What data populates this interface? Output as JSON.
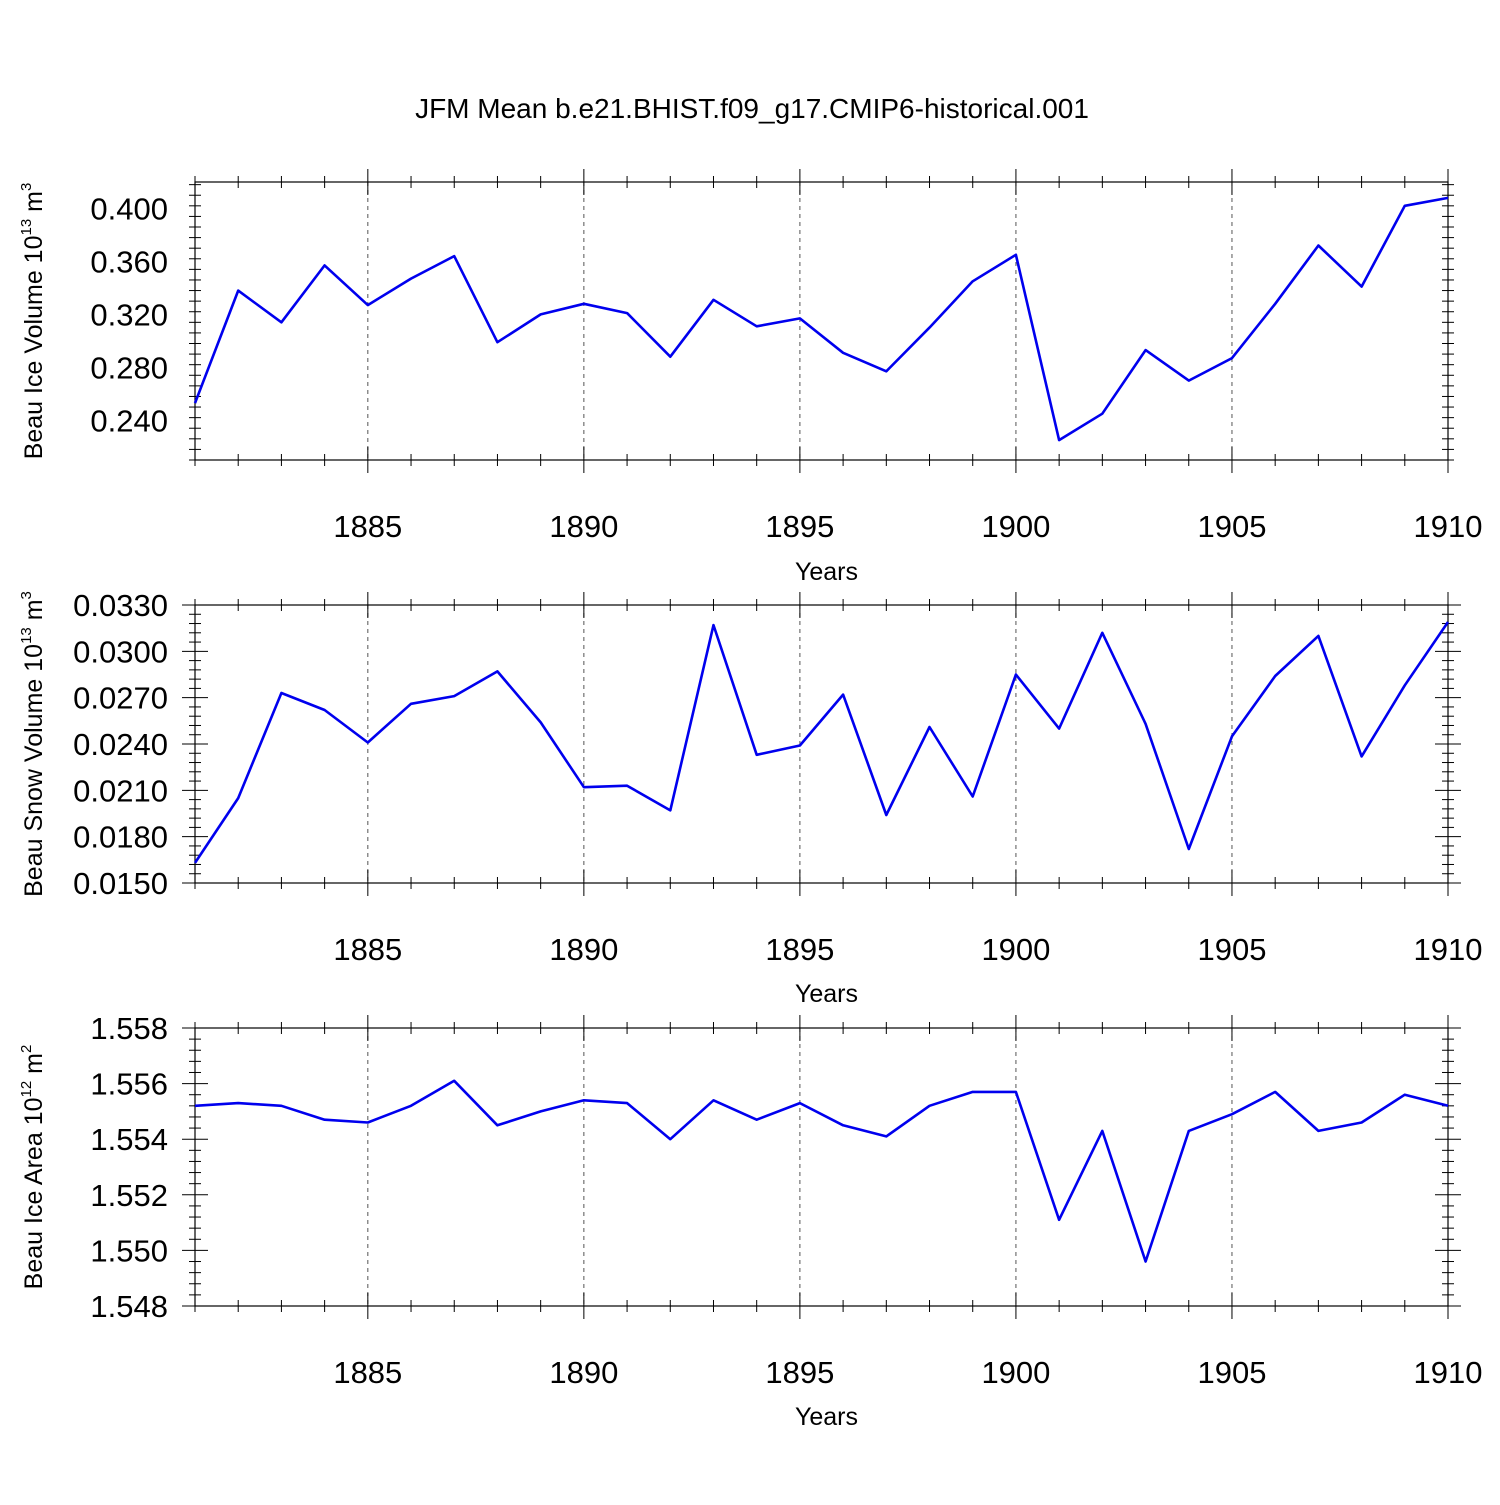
{
  "title": "JFM Mean b.e21.BHIST.f09_g17.CMIP6-historical.001",
  "colors": {
    "series": "#0000ee",
    "axes": "#000000",
    "grid": "#555555"
  },
  "chart_data": [
    {
      "type": "line",
      "xlabel": "Years",
      "ylabel": {
        "main": "Beau Ice Volume 10",
        "sup": "13",
        "tail": " m",
        "sup2": "3"
      },
      "xlim": [
        1881,
        1910
      ],
      "ylim": [
        0.21,
        0.42
      ],
      "xticks": [
        1885,
        1890,
        1895,
        1900,
        1905,
        1910
      ],
      "yticks": [
        0.24,
        0.28,
        0.32,
        0.36,
        0.4
      ],
      "ytick_labels": [
        "0.240",
        "0.280",
        "0.320",
        "0.360",
        "0.400"
      ],
      "grid": "dashed vertical at major x ticks",
      "x": [
        1881,
        1882,
        1883,
        1884,
        1885,
        1886,
        1887,
        1888,
        1889,
        1890,
        1891,
        1892,
        1893,
        1894,
        1895,
        1896,
        1897,
        1898,
        1899,
        1900,
        1901,
        1902,
        1903,
        1904,
        1905,
        1906,
        1907,
        1908,
        1909,
        1910
      ],
      "values": [
        0.253,
        0.338,
        0.314,
        0.357,
        0.327,
        0.347,
        0.364,
        0.299,
        0.32,
        0.328,
        0.321,
        0.288,
        0.331,
        0.311,
        0.317,
        0.291,
        0.277,
        0.31,
        0.345,
        0.365,
        0.225,
        0.245,
        0.293,
        0.27,
        0.287,
        0.328,
        0.372,
        0.341,
        0.402,
        0.408
      ]
    },
    {
      "type": "line",
      "xlabel": "Years",
      "ylabel": {
        "main": "Beau Snow Volume 10",
        "sup": "13",
        "tail": " m",
        "sup2": "3"
      },
      "xlim": [
        1881,
        1910
      ],
      "ylim": [
        0.015,
        0.033
      ],
      "xticks": [
        1885,
        1890,
        1895,
        1900,
        1905,
        1910
      ],
      "yticks": [
        0.015,
        0.018,
        0.021,
        0.024,
        0.027,
        0.03,
        0.033
      ],
      "ytick_labels": [
        "0.0150",
        "0.0180",
        "0.0210",
        "0.0240",
        "0.0270",
        "0.0300",
        "0.0330"
      ],
      "grid": "dashed vertical at major x ticks",
      "x": [
        1881,
        1882,
        1883,
        1884,
        1885,
        1886,
        1887,
        1888,
        1889,
        1890,
        1891,
        1892,
        1893,
        1894,
        1895,
        1896,
        1897,
        1898,
        1899,
        1900,
        1901,
        1902,
        1903,
        1904,
        1905,
        1906,
        1907,
        1908,
        1909,
        1910
      ],
      "values": [
        0.0163,
        0.0205,
        0.0273,
        0.0262,
        0.0241,
        0.0266,
        0.0271,
        0.0287,
        0.0254,
        0.0212,
        0.0213,
        0.0197,
        0.0317,
        0.0233,
        0.0239,
        0.0272,
        0.0194,
        0.0251,
        0.0206,
        0.0285,
        0.025,
        0.0312,
        0.0253,
        0.0172,
        0.0245,
        0.0284,
        0.031,
        0.0232,
        0.0278,
        0.0319
      ]
    },
    {
      "type": "line",
      "xlabel": "Years",
      "ylabel": {
        "main": "Beau Ice Area 10",
        "sup": "12",
        "tail": " m",
        "sup2": "2"
      },
      "xlim": [
        1881,
        1910
      ],
      "ylim": [
        1.548,
        1.558
      ],
      "xticks": [
        1885,
        1890,
        1895,
        1900,
        1905,
        1910
      ],
      "yticks": [
        1.548,
        1.55,
        1.552,
        1.554,
        1.556,
        1.558
      ],
      "ytick_labels": [
        "1.548",
        "1.550",
        "1.552",
        "1.554",
        "1.556",
        "1.558"
      ],
      "grid": "dashed vertical at major x ticks",
      "x": [
        1881,
        1882,
        1883,
        1884,
        1885,
        1886,
        1887,
        1888,
        1889,
        1890,
        1891,
        1892,
        1893,
        1894,
        1895,
        1896,
        1897,
        1898,
        1899,
        1900,
        1901,
        1902,
        1903,
        1904,
        1905,
        1906,
        1907,
        1908,
        1909,
        1910
      ],
      "values": [
        1.5552,
        1.5553,
        1.5552,
        1.5547,
        1.5546,
        1.5552,
        1.5561,
        1.5545,
        1.555,
        1.5554,
        1.5553,
        1.554,
        1.5554,
        1.5547,
        1.5553,
        1.5545,
        1.5541,
        1.5552,
        1.5557,
        1.5557,
        1.5511,
        1.5543,
        1.5496,
        1.5543,
        1.5549,
        1.5557,
        1.5543,
        1.5546,
        1.5556,
        1.5552
      ]
    }
  ]
}
